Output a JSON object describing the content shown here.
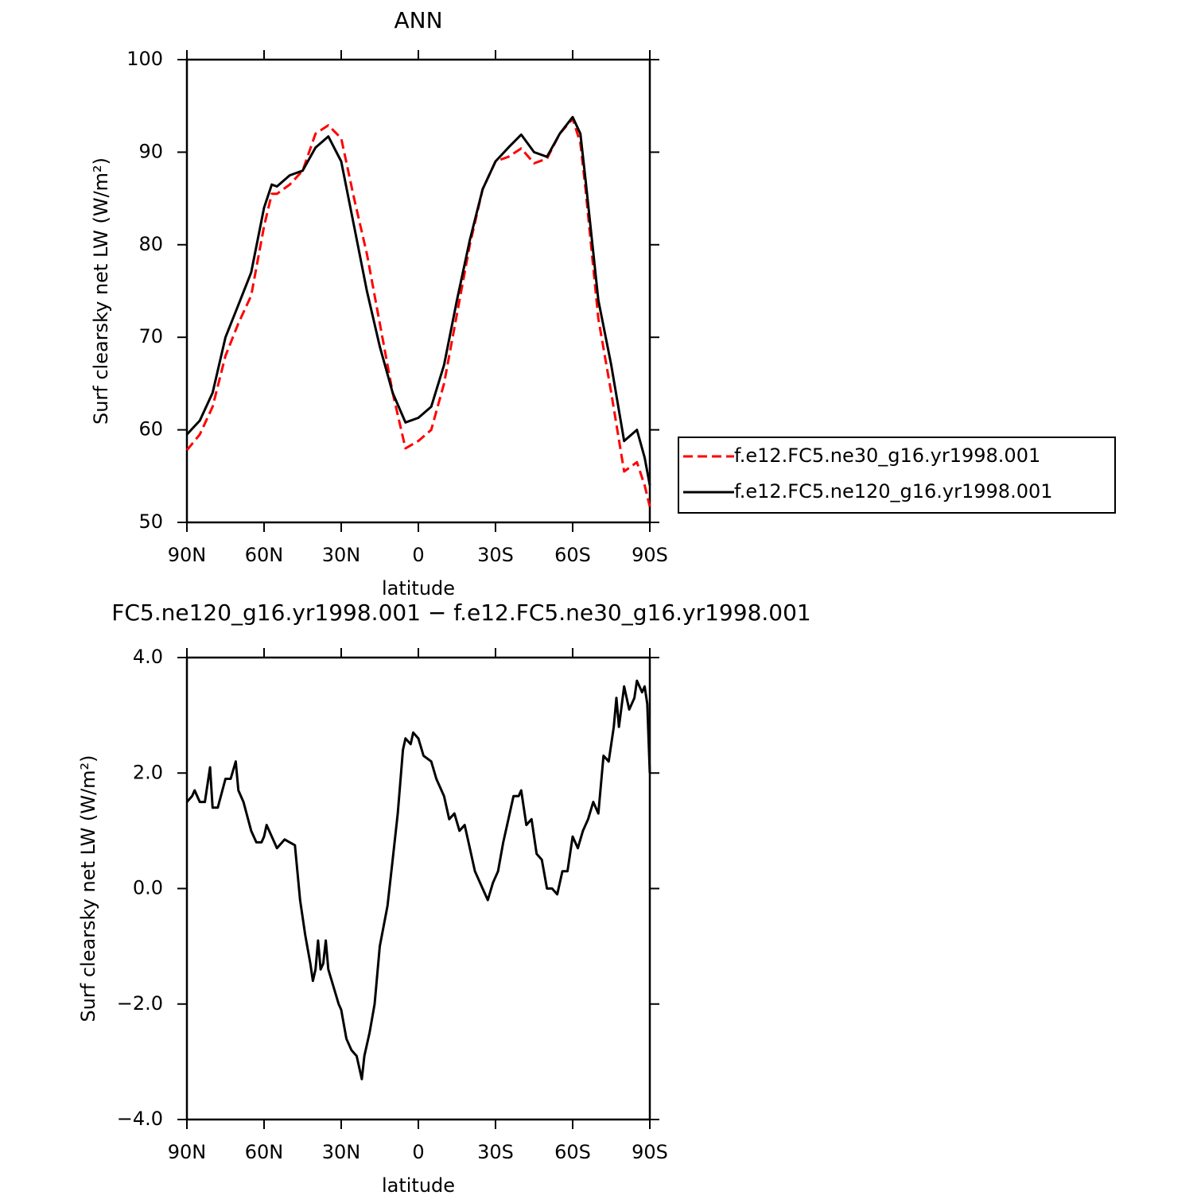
{
  "chart_data": [
    {
      "type": "line",
      "title": "ANN",
      "x_label": "latitude",
      "y_label": "Surf clearsky net LW (W/m²)",
      "x": [
        90,
        85,
        80,
        75,
        70,
        65,
        60,
        57,
        55,
        50,
        45,
        40,
        35,
        30,
        25,
        20,
        15,
        10,
        5,
        0,
        -5,
        -10,
        -15,
        -20,
        -25,
        -30,
        -35,
        -40,
        -45,
        -50,
        -55,
        -60,
        -63,
        -65,
        -70,
        -75,
        -80,
        -85,
        -88,
        -90
      ],
      "xlim": [
        90,
        -90
      ],
      "xticks": [
        {
          "value": 90,
          "label": "90N"
        },
        {
          "value": 60,
          "label": "60N"
        },
        {
          "value": 30,
          "label": "30N"
        },
        0,
        {
          "value": -30,
          "label": "30S"
        },
        {
          "value": -60,
          "label": "60S"
        },
        {
          "value": -90,
          "label": "90S"
        }
      ],
      "ylim": [
        50,
        100
      ],
      "yticks": [
        50,
        60,
        70,
        80,
        90,
        100
      ],
      "legend": "right",
      "series": [
        {
          "name": "f.e12.FC5.ne30_g16.yr1998.001",
          "color": "#ff0000",
          "dash": "dashed",
          "values": [
            57.8,
            59.5,
            62.5,
            68,
            71.5,
            74.5,
            82,
            85.5,
            85.5,
            86.5,
            88,
            92,
            92.9,
            91.5,
            85,
            79,
            71.5,
            64,
            58,
            58.8,
            60,
            65,
            72.5,
            80,
            86,
            89,
            89.5,
            90.4,
            88.8,
            89.3,
            92,
            93.6,
            91,
            86,
            72,
            64,
            55.5,
            56.5,
            54,
            51.7
          ]
        },
        {
          "name": "f.e12.FC5.ne120_g16.yr1998.001",
          "color": "#000000",
          "dash": "solid",
          "values": [
            59.5,
            61,
            64,
            70,
            73.5,
            77,
            84,
            86.5,
            86.3,
            87.5,
            88,
            90.5,
            91.7,
            89,
            82,
            75,
            69,
            64,
            60.8,
            61.3,
            62.5,
            67,
            74,
            80.5,
            86,
            89,
            90.5,
            91.9,
            90,
            89.5,
            92,
            93.8,
            92,
            87,
            74,
            67,
            58.8,
            60,
            57,
            54
          ]
        }
      ]
    },
    {
      "type": "line",
      "title": "FC5.ne120_g16.yr1998.001 − f.e12.FC5.ne30_g16.yr1998.001",
      "x_label": "latitude",
      "y_label": "Surf clearsky net LW (W/m²)",
      "x": [
        90,
        88,
        87,
        85,
        83,
        81,
        80,
        78,
        75,
        73,
        71,
        70,
        68,
        65,
        63,
        61,
        60,
        59,
        57,
        55,
        52,
        50,
        48,
        46,
        44,
        42,
        41,
        40,
        39,
        38,
        37,
        36,
        35,
        33,
        31,
        30,
        28,
        26,
        24,
        22,
        21,
        19,
        17,
        15,
        12,
        10,
        8,
        6,
        5,
        3,
        2,
        0,
        -2,
        -5,
        -7,
        -10,
        -12,
        -14,
        -16,
        -18,
        -20,
        -22,
        -25,
        -27,
        -29,
        -31,
        -33,
        -35,
        -37,
        -39,
        -40,
        -42,
        -44,
        -46,
        -48,
        -50,
        -52,
        -54,
        -56,
        -58,
        -60,
        -62,
        -64,
        -66,
        -68,
        -70,
        -72,
        -74,
        -76,
        -77,
        -78,
        -80,
        -82,
        -84,
        -85,
        -87,
        -88,
        -89,
        -90
      ],
      "xlim": [
        90,
        -90
      ],
      "xticks": [
        {
          "value": 90,
          "label": "90N"
        },
        {
          "value": 60,
          "label": "60N"
        },
        {
          "value": 30,
          "label": "30N"
        },
        0,
        {
          "value": -30,
          "label": "30S"
        },
        {
          "value": -60,
          "label": "60S"
        },
        {
          "value": -90,
          "label": "90S"
        }
      ],
      "ylim": [
        -4,
        4
      ],
      "yticks": [
        {
          "value": -4,
          "label": "−4.0"
        },
        {
          "value": -2,
          "label": "−2.0"
        },
        {
          "value": 0,
          "label": "0.0"
        },
        {
          "value": 2,
          "label": "2.0"
        },
        {
          "value": 4,
          "label": "4.0"
        }
      ],
      "color": "#000000",
      "values": [
        1.5,
        1.6,
        1.7,
        1.5,
        1.5,
        2.1,
        1.4,
        1.4,
        1.9,
        1.9,
        2.2,
        1.7,
        1.5,
        1.0,
        0.8,
        0.8,
        0.9,
        1.1,
        0.9,
        0.7,
        0.85,
        0.8,
        0.75,
        -0.2,
        -0.8,
        -1.3,
        -1.6,
        -1.4,
        -0.9,
        -1.4,
        -1.3,
        -0.9,
        -1.4,
        -1.7,
        -2.0,
        -2.1,
        -2.6,
        -2.8,
        -2.9,
        -3.3,
        -2.9,
        -2.5,
        -2.0,
        -1.0,
        -0.3,
        0.5,
        1.3,
        2.4,
        2.6,
        2.5,
        2.7,
        2.6,
        2.3,
        2.2,
        1.9,
        1.6,
        1.2,
        1.3,
        1.0,
        1.1,
        0.7,
        0.3,
        0.0,
        -0.2,
        0.1,
        0.3,
        0.8,
        1.2,
        1.6,
        1.6,
        1.7,
        1.1,
        1.2,
        0.6,
        0.5,
        0.0,
        0.0,
        -0.1,
        0.3,
        0.3,
        0.9,
        0.7,
        1.0,
        1.2,
        1.5,
        1.3,
        2.3,
        2.2,
        2.8,
        3.3,
        2.8,
        3.5,
        3.1,
        3.3,
        3.6,
        3.4,
        3.5,
        3.2,
        2.0
      ]
    }
  ]
}
